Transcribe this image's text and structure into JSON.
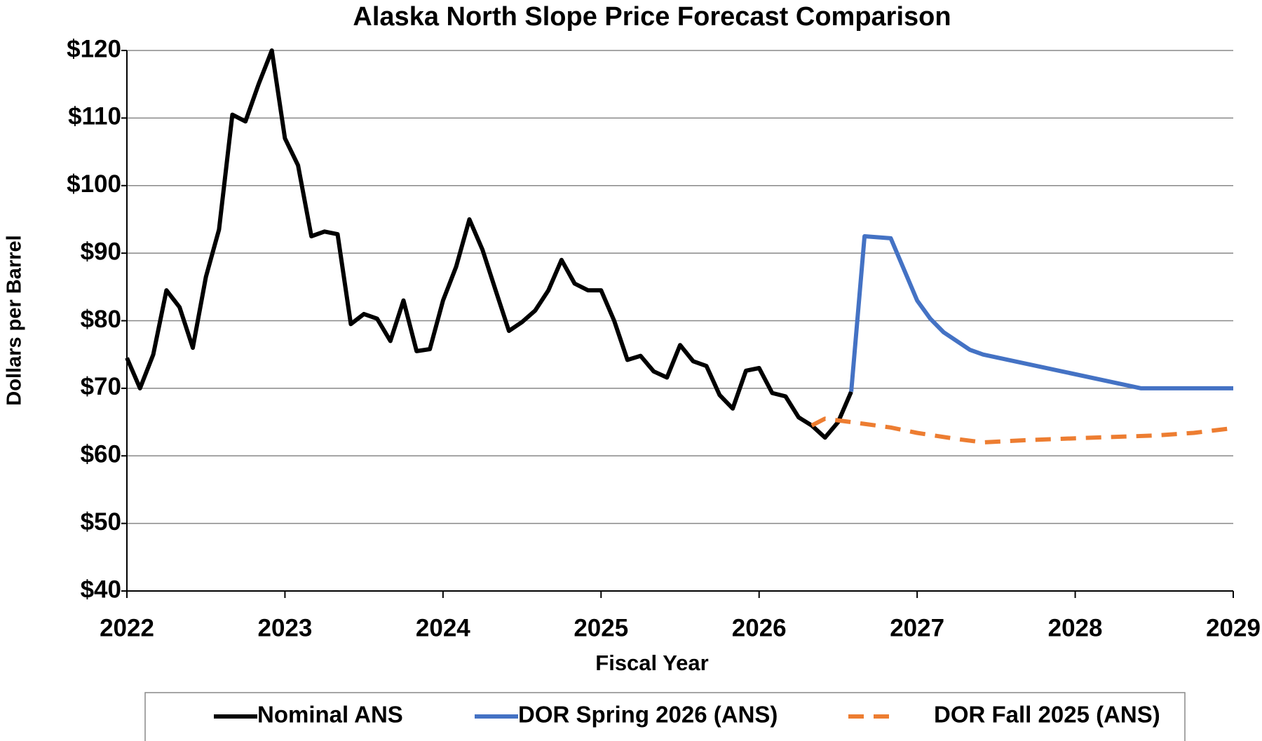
{
  "chart_data": {
    "type": "line",
    "title": "Alaska North Slope Price Forecast Comparison",
    "xlabel": "Fiscal Year",
    "ylabel": "Dollars per Barrel",
    "xlim": [
      2022,
      2029
    ],
    "xticks": [
      2022,
      2023,
      2024,
      2025,
      2026,
      2027,
      2028,
      2029
    ],
    "ylim": [
      40,
      120
    ],
    "yticks": [
      {
        "value": 40,
        "label": "$40"
      },
      {
        "value": 50,
        "label": "$50"
      },
      {
        "value": 60,
        "label": "$60"
      },
      {
        "value": 70,
        "label": "$70"
      },
      {
        "value": 80,
        "label": "$80"
      },
      {
        "value": 90,
        "label": "$90"
      },
      {
        "value": 100,
        "label": "$100"
      },
      {
        "value": 110,
        "label": "$110"
      },
      {
        "value": 120,
        "label": "$120"
      }
    ],
    "grid": true,
    "legend": "bottom",
    "series": [
      {
        "name": "Nominal ANS",
        "color": "#000000",
        "dash": false,
        "x": [
          2022.0,
          2022.083,
          2022.167,
          2022.25,
          2022.333,
          2022.417,
          2022.5,
          2022.583,
          2022.667,
          2022.75,
          2022.833,
          2022.917,
          2023.0,
          2023.083,
          2023.167,
          2023.25,
          2023.333,
          2023.417,
          2023.5,
          2023.583,
          2023.667,
          2023.75,
          2023.833,
          2023.917,
          2024.0,
          2024.083,
          2024.167,
          2024.25,
          2024.333,
          2024.417,
          2024.5,
          2024.583,
          2024.667,
          2024.75,
          2024.833,
          2024.917,
          2025.0,
          2025.083,
          2025.167,
          2025.25,
          2025.333,
          2025.417,
          2025.5,
          2025.583,
          2025.667,
          2025.75,
          2025.833,
          2025.917,
          2026.0,
          2026.083,
          2026.167,
          2026.25,
          2026.333,
          2026.417,
          2026.5,
          2026.583
        ],
        "values": [
          74.5,
          70,
          75,
          84.5,
          82,
          76,
          86.5,
          93.5,
          110.5,
          109.5,
          115,
          120,
          107,
          103,
          92.5,
          93.2,
          92.8,
          79.5,
          81,
          80.3,
          77,
          83,
          75.5,
          75.8,
          83,
          88,
          95,
          90.5,
          84.5,
          78.5,
          79.8,
          81.5,
          84.5,
          89,
          85.5,
          84.5,
          84.5,
          80,
          74.2,
          74.8,
          72.5,
          71.6,
          76.4,
          74,
          73.3,
          69,
          67,
          72.6,
          73,
          69.3,
          68.8,
          65.7,
          64.5,
          62.7,
          65,
          69.5
        ]
      },
      {
        "name": "DOR Spring 2026 (ANS)",
        "color": "#4472c4",
        "dash": false,
        "x": [
          2026.583,
          2026.667,
          2026.833,
          2027.0,
          2027.083,
          2027.167,
          2027.333,
          2027.417,
          2027.917,
          2028.417,
          2029.0
        ],
        "values": [
          69.5,
          92.5,
          92.2,
          83,
          80.3,
          78.3,
          75.7,
          75,
          72.5,
          70,
          70
        ]
      },
      {
        "name": "DOR Fall 2025 (ANS)",
        "color": "#ed7d31",
        "dash": true,
        "x": [
          2026.333,
          2026.417,
          2026.583,
          2026.833,
          2027.0,
          2027.25,
          2027.417,
          2027.667,
          2028.0,
          2028.5,
          2028.75,
          2029.0
        ],
        "values": [
          64.5,
          65.5,
          65,
          64.2,
          63.4,
          62.5,
          62,
          62.3,
          62.6,
          63,
          63.4,
          64.1
        ]
      }
    ]
  }
}
